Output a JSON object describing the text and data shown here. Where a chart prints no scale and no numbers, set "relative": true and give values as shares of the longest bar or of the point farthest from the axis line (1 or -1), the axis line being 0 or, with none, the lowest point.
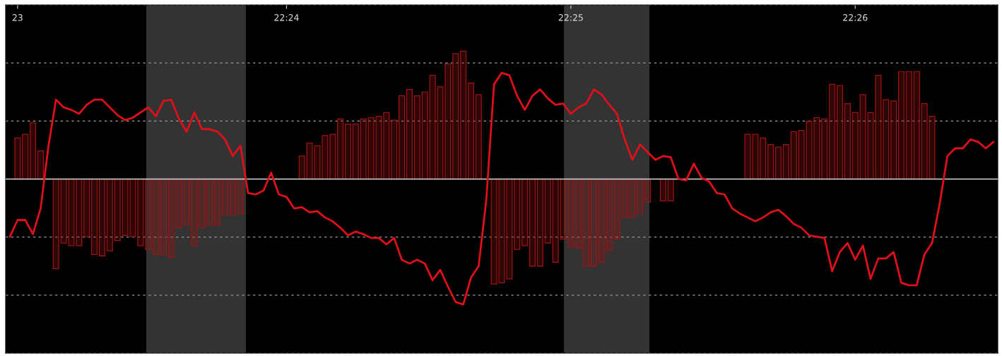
{
  "chart_data": {
    "type": "bar",
    "relative": true,
    "grid": "y",
    "categories": [
      null,
      "23",
      null,
      null,
      null,
      null,
      null,
      null,
      null,
      null,
      null,
      null,
      null,
      null,
      null,
      null,
      null,
      null,
      null,
      null,
      null,
      null,
      null,
      null,
      null,
      null,
      null,
      null,
      null,
      null,
      null,
      null,
      null,
      null,
      null,
      null,
      "22:24",
      null,
      null,
      null,
      null,
      null,
      null,
      null,
      null,
      null,
      null,
      null,
      null,
      null,
      null,
      null,
      null,
      null,
      null,
      null,
      null,
      null,
      null,
      null,
      null,
      null,
      null,
      null,
      null,
      null,
      null,
      null,
      null,
      null,
      null,
      null,
      null,
      "22:25",
      null,
      null,
      null,
      null,
      null,
      null,
      null,
      null,
      null,
      null,
      null,
      null,
      null,
      null,
      null,
      null,
      null,
      null,
      null,
      null,
      null,
      null,
      null,
      null,
      null,
      null,
      null,
      null,
      null,
      null,
      null,
      null,
      null,
      null,
      null,
      null,
      "22:26",
      null,
      null,
      null,
      null,
      null,
      null,
      null,
      null,
      null,
      null,
      null,
      null,
      null,
      null,
      null,
      null,
      null,
      null
    ],
    "series": [
      {
        "color": "#9a1414",
        "values": [
          null,
          0.32,
          0.35,
          0.44,
          0.22,
          null,
          -0.7,
          -0.5,
          -0.52,
          -0.52,
          -0.45,
          -0.59,
          -0.6,
          -0.56,
          -0.48,
          -0.44,
          -0.45,
          -0.52,
          -0.55,
          -0.59,
          -0.59,
          -0.61,
          -0.38,
          -0.36,
          -0.52,
          -0.38,
          -0.36,
          -0.36,
          -0.28,
          -0.28,
          -0.27,
          null,
          null,
          null,
          null,
          null,
          null,
          null,
          0.18,
          0.28,
          0.26,
          0.34,
          0.35,
          0.47,
          0.43,
          0.43,
          0.47,
          0.48,
          0.49,
          0.52,
          0.46,
          0.65,
          0.7,
          0.65,
          0.68,
          0.81,
          0.72,
          0.9,
          0.98,
          1.0,
          0.75,
          0.66,
          null,
          -0.82,
          -0.81,
          -0.78,
          -0.55,
          -0.52,
          -0.68,
          -0.68,
          -0.5,
          -0.65,
          -0.47,
          -0.53,
          -0.54,
          -0.68,
          -0.68,
          -0.65,
          -0.56,
          -0.47,
          -0.3,
          -0.3,
          -0.27,
          -0.18,
          null,
          -0.17,
          -0.17,
          null,
          null,
          null,
          null,
          null,
          null,
          null,
          null,
          null,
          0.35,
          0.35,
          0.32,
          0.27,
          0.25,
          0.27,
          0.37,
          0.38,
          0.45,
          0.48,
          0.47,
          0.74,
          0.73,
          0.59,
          0.52,
          0.66,
          0.52,
          0.81,
          0.62,
          0.61,
          0.84,
          0.84,
          0.84,
          0.59,
          0.49,
          null,
          null,
          null,
          null,
          null,
          null,
          null,
          null
        ]
      },
      {
        "type": "line",
        "color": "#e0101a",
        "values": [
          -0.45,
          -0.32,
          -0.32,
          -0.43,
          -0.23,
          0.25,
          0.62,
          0.56,
          0.54,
          0.51,
          0.58,
          0.62,
          0.62,
          0.56,
          0.5,
          0.46,
          0.48,
          0.52,
          0.56,
          0.49,
          0.61,
          0.62,
          0.47,
          0.37,
          0.52,
          0.39,
          0.39,
          0.37,
          0.31,
          0.18,
          0.26,
          -0.11,
          -0.12,
          -0.09,
          0.05,
          -0.12,
          -0.14,
          -0.23,
          -0.22,
          -0.26,
          -0.25,
          -0.3,
          -0.33,
          -0.38,
          -0.44,
          -0.41,
          -0.43,
          -0.46,
          -0.46,
          -0.51,
          -0.46,
          -0.63,
          -0.66,
          -0.63,
          -0.66,
          -0.79,
          -0.71,
          -0.84,
          -0.96,
          -0.98,
          -0.77,
          -0.68,
          -0.16,
          0.74,
          0.83,
          0.81,
          0.65,
          0.54,
          0.65,
          0.7,
          0.63,
          0.58,
          0.59,
          0.51,
          0.56,
          0.59,
          0.7,
          0.66,
          0.58,
          0.51,
          0.31,
          0.15,
          0.27,
          0.21,
          0.15,
          0.18,
          0.17,
          0.0,
          -0.01,
          0.12,
          0.01,
          -0.02,
          -0.11,
          -0.12,
          -0.23,
          -0.27,
          -0.3,
          -0.33,
          -0.3,
          -0.26,
          -0.24,
          -0.29,
          -0.35,
          -0.38,
          -0.44,
          -0.45,
          -0.46,
          -0.72,
          -0.57,
          -0.5,
          -0.63,
          -0.52,
          -0.78,
          -0.62,
          -0.62,
          -0.57,
          -0.81,
          -0.83,
          -0.83,
          -0.59,
          -0.5,
          -0.19,
          0.18,
          0.24,
          0.24,
          0.31,
          0.29,
          0.24,
          0.29
        ]
      }
    ]
  }
}
